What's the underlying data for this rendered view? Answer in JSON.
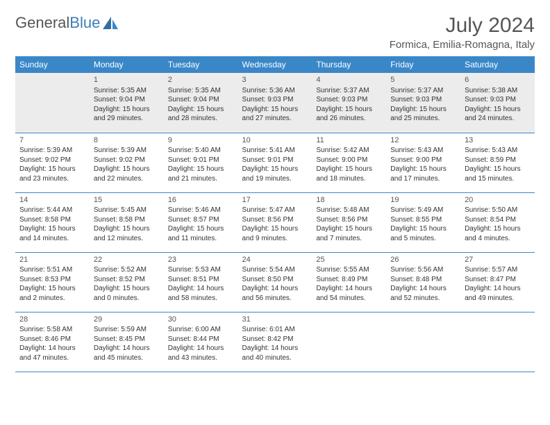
{
  "logo": {
    "text1": "General",
    "text2": "Blue"
  },
  "title": "July 2024",
  "location": "Formica, Emilia-Romagna, Italy",
  "colors": {
    "header_bg": "#3a87c8",
    "header_text": "#ffffff",
    "first_row_bg": "#ececec",
    "border": "#3a87c8",
    "logo_blue": "#3a7fb8",
    "text": "#333333"
  },
  "weekdays": [
    "Sunday",
    "Monday",
    "Tuesday",
    "Wednesday",
    "Thursday",
    "Friday",
    "Saturday"
  ],
  "weeks": [
    [
      null,
      {
        "n": "1",
        "sr": "5:35 AM",
        "ss": "9:04 PM",
        "dl": "15 hours and 29 minutes."
      },
      {
        "n": "2",
        "sr": "5:35 AM",
        "ss": "9:04 PM",
        "dl": "15 hours and 28 minutes."
      },
      {
        "n": "3",
        "sr": "5:36 AM",
        "ss": "9:03 PM",
        "dl": "15 hours and 27 minutes."
      },
      {
        "n": "4",
        "sr": "5:37 AM",
        "ss": "9:03 PM",
        "dl": "15 hours and 26 minutes."
      },
      {
        "n": "5",
        "sr": "5:37 AM",
        "ss": "9:03 PM",
        "dl": "15 hours and 25 minutes."
      },
      {
        "n": "6",
        "sr": "5:38 AM",
        "ss": "9:03 PM",
        "dl": "15 hours and 24 minutes."
      }
    ],
    [
      {
        "n": "7",
        "sr": "5:39 AM",
        "ss": "9:02 PM",
        "dl": "15 hours and 23 minutes."
      },
      {
        "n": "8",
        "sr": "5:39 AM",
        "ss": "9:02 PM",
        "dl": "15 hours and 22 minutes."
      },
      {
        "n": "9",
        "sr": "5:40 AM",
        "ss": "9:01 PM",
        "dl": "15 hours and 21 minutes."
      },
      {
        "n": "10",
        "sr": "5:41 AM",
        "ss": "9:01 PM",
        "dl": "15 hours and 19 minutes."
      },
      {
        "n": "11",
        "sr": "5:42 AM",
        "ss": "9:00 PM",
        "dl": "15 hours and 18 minutes."
      },
      {
        "n": "12",
        "sr": "5:43 AM",
        "ss": "9:00 PM",
        "dl": "15 hours and 17 minutes."
      },
      {
        "n": "13",
        "sr": "5:43 AM",
        "ss": "8:59 PM",
        "dl": "15 hours and 15 minutes."
      }
    ],
    [
      {
        "n": "14",
        "sr": "5:44 AM",
        "ss": "8:58 PM",
        "dl": "15 hours and 14 minutes."
      },
      {
        "n": "15",
        "sr": "5:45 AM",
        "ss": "8:58 PM",
        "dl": "15 hours and 12 minutes."
      },
      {
        "n": "16",
        "sr": "5:46 AM",
        "ss": "8:57 PM",
        "dl": "15 hours and 11 minutes."
      },
      {
        "n": "17",
        "sr": "5:47 AM",
        "ss": "8:56 PM",
        "dl": "15 hours and 9 minutes."
      },
      {
        "n": "18",
        "sr": "5:48 AM",
        "ss": "8:56 PM",
        "dl": "15 hours and 7 minutes."
      },
      {
        "n": "19",
        "sr": "5:49 AM",
        "ss": "8:55 PM",
        "dl": "15 hours and 5 minutes."
      },
      {
        "n": "20",
        "sr": "5:50 AM",
        "ss": "8:54 PM",
        "dl": "15 hours and 4 minutes."
      }
    ],
    [
      {
        "n": "21",
        "sr": "5:51 AM",
        "ss": "8:53 PM",
        "dl": "15 hours and 2 minutes."
      },
      {
        "n": "22",
        "sr": "5:52 AM",
        "ss": "8:52 PM",
        "dl": "15 hours and 0 minutes."
      },
      {
        "n": "23",
        "sr": "5:53 AM",
        "ss": "8:51 PM",
        "dl": "14 hours and 58 minutes."
      },
      {
        "n": "24",
        "sr": "5:54 AM",
        "ss": "8:50 PM",
        "dl": "14 hours and 56 minutes."
      },
      {
        "n": "25",
        "sr": "5:55 AM",
        "ss": "8:49 PM",
        "dl": "14 hours and 54 minutes."
      },
      {
        "n": "26",
        "sr": "5:56 AM",
        "ss": "8:48 PM",
        "dl": "14 hours and 52 minutes."
      },
      {
        "n": "27",
        "sr": "5:57 AM",
        "ss": "8:47 PM",
        "dl": "14 hours and 49 minutes."
      }
    ],
    [
      {
        "n": "28",
        "sr": "5:58 AM",
        "ss": "8:46 PM",
        "dl": "14 hours and 47 minutes."
      },
      {
        "n": "29",
        "sr": "5:59 AM",
        "ss": "8:45 PM",
        "dl": "14 hours and 45 minutes."
      },
      {
        "n": "30",
        "sr": "6:00 AM",
        "ss": "8:44 PM",
        "dl": "14 hours and 43 minutes."
      },
      {
        "n": "31",
        "sr": "6:01 AM",
        "ss": "8:42 PM",
        "dl": "14 hours and 40 minutes."
      },
      null,
      null,
      null
    ]
  ],
  "labels": {
    "sunrise": "Sunrise:",
    "sunset": "Sunset:",
    "daylight": "Daylight:"
  }
}
